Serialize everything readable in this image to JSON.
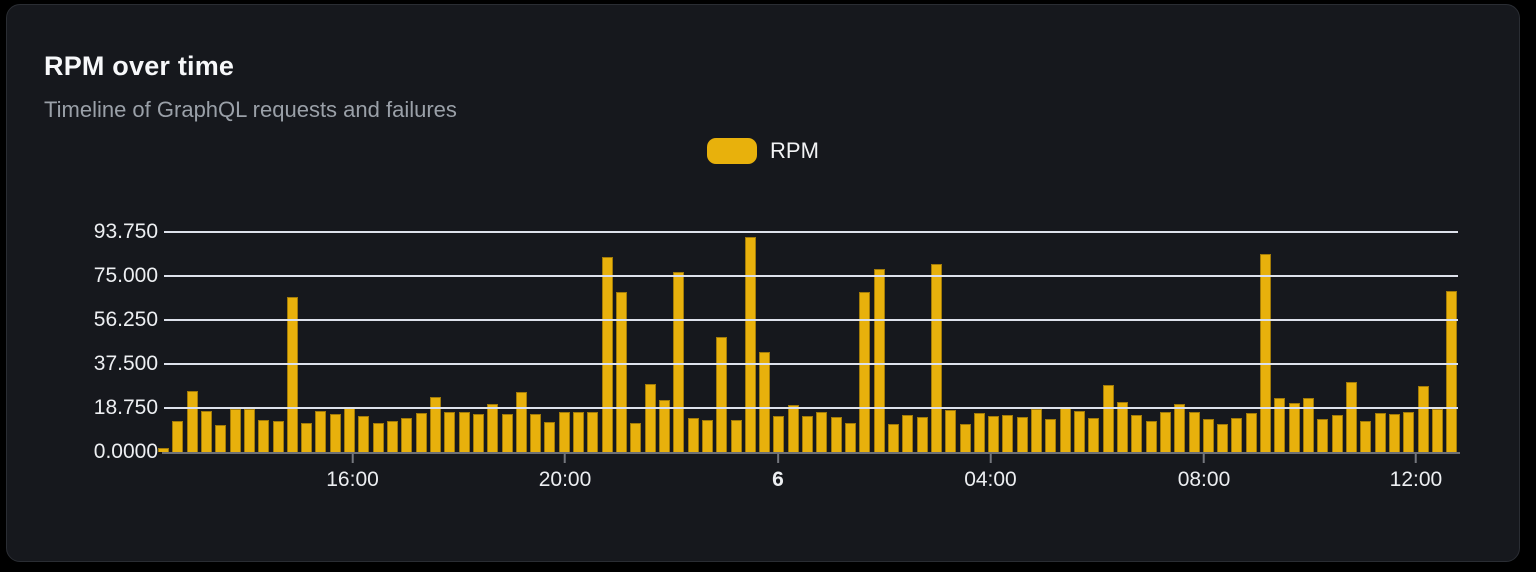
{
  "header": {
    "title": "RPM over time",
    "subtitle": "Timeline of GraphQL requests and failures"
  },
  "legend": {
    "items": [
      {
        "label": "RPM",
        "color": "#e8b10c"
      }
    ]
  },
  "colors": {
    "bar_fill": "#e8b10c",
    "card_background": "#16181d",
    "page_background": "#000000",
    "gridline": "#dde1eb",
    "axis_line": "#6e7176",
    "axis_text": "#edeff2",
    "subtitle_text": "#9aa0a8"
  },
  "chart_data": {
    "type": "bar",
    "title": "RPM over time",
    "subtitle": "Timeline of GraphQL requests and failures",
    "legend_entries": [
      "RPM"
    ],
    "legend_position": "top-center",
    "grid": true,
    "ylim": [
      0,
      97.5
    ],
    "y_ticks": [
      {
        "label": "0.0000",
        "value": 0
      },
      {
        "label": "18.750",
        "value": 18.75
      },
      {
        "label": "37.500",
        "value": 37.5
      },
      {
        "label": "56.250",
        "value": 56.25
      },
      {
        "label": "75.000",
        "value": 75
      },
      {
        "label": "93.750",
        "value": 93.75
      }
    ],
    "x_ticks": [
      {
        "label": "16:00",
        "pos_pct": 14.57,
        "bold": false
      },
      {
        "label": "20:00",
        "pos_pct": 30.99,
        "bold": false
      },
      {
        "label": "6",
        "pos_pct": 47.45,
        "bold": true
      },
      {
        "label": "04:00",
        "pos_pct": 63.87,
        "bold": false
      },
      {
        "label": "08:00",
        "pos_pct": 80.37,
        "bold": false
      },
      {
        "label": "12:00",
        "pos_pct": 96.75,
        "bold": false
      }
    ],
    "series": [
      {
        "name": "RPM",
        "color": "#e8b10c",
        "values": [
          1.5,
          13.4,
          26,
          17.3,
          11.6,
          18.5,
          18.5,
          13.7,
          13.3,
          66,
          12.4,
          17.4,
          16.4,
          19,
          15.4,
          12.4,
          13,
          14.3,
          16.5,
          23.3,
          17,
          17.2,
          16,
          20.3,
          16,
          25.4,
          16,
          12.7,
          17,
          17,
          17,
          83,
          68,
          12.2,
          28.8,
          22,
          76.7,
          14.5,
          13.6,
          48.8,
          13.8,
          91.5,
          42.8,
          15.3,
          20.2,
          15.5,
          17.2,
          14.8,
          12.2,
          68,
          78,
          12,
          15.7,
          15,
          80.3,
          17.8,
          11.9,
          16.8,
          15.5,
          15.9,
          15,
          18.3,
          14,
          19.2,
          17.5,
          14.6,
          28.5,
          21.5,
          15.7,
          13.3,
          17.2,
          20.6,
          17.2,
          14,
          12,
          14.5,
          16.6,
          84.4,
          23,
          21,
          22.8,
          14,
          15.7,
          30,
          13,
          16.7,
          16,
          17,
          28,
          18.3,
          68.5
        ]
      }
    ]
  }
}
